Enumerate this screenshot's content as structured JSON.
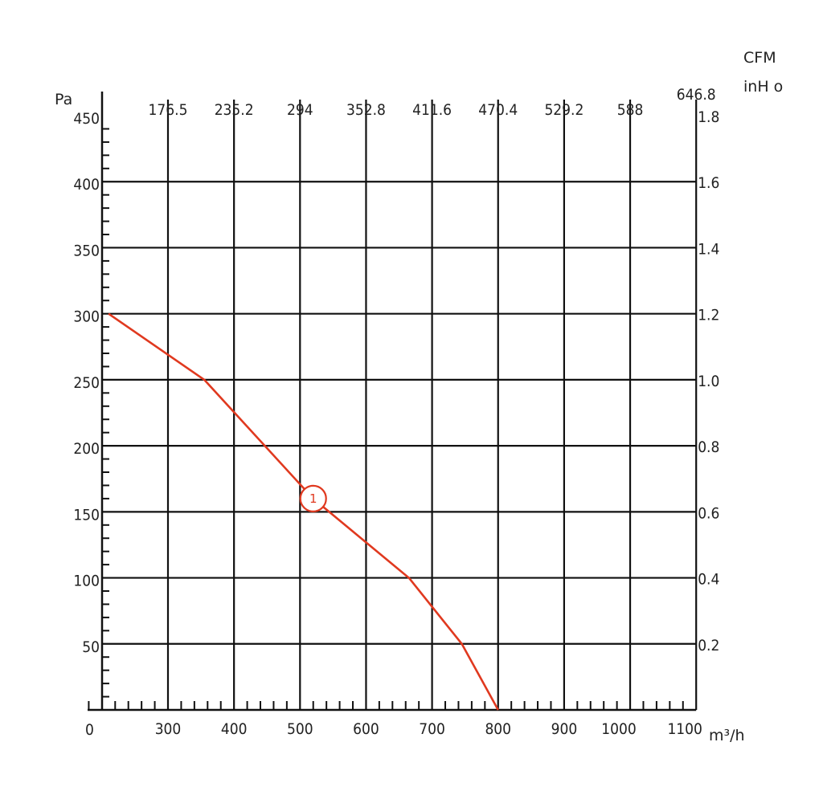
{
  "chart_data": {
    "type": "line",
    "y_unit": "Pa",
    "x_unit": "m³/h",
    "top_unit": "CFM",
    "right_unit": "inH o",
    "xlim": [
      200,
      1100
    ],
    "ylim": [
      0,
      450
    ],
    "x_ticks": [
      {
        "value": 300,
        "label": "300"
      },
      {
        "value": 400,
        "label": "400"
      },
      {
        "value": 500,
        "label": "500"
      },
      {
        "value": 600,
        "label": "600"
      },
      {
        "value": 700,
        "label": "700"
      },
      {
        "value": 800,
        "label": "800"
      },
      {
        "value": 900,
        "label": "900"
      },
      {
        "value": 1000,
        "label": "1000"
      },
      {
        "value": 1100,
        "label": "1100"
      }
    ],
    "x_origin_label": "0",
    "y_ticks": [
      {
        "value": 50,
        "label": "50"
      },
      {
        "value": 100,
        "label": "100"
      },
      {
        "value": 150,
        "label": "150"
      },
      {
        "value": 200,
        "label": "200"
      },
      {
        "value": 250,
        "label": "250"
      },
      {
        "value": 300,
        "label": "300"
      },
      {
        "value": 350,
        "label": "350"
      },
      {
        "value": 400,
        "label": "400"
      },
      {
        "value": 450,
        "label": "450"
      }
    ],
    "top_ticks": [
      {
        "value": 300,
        "label": "176.5"
      },
      {
        "value": 400,
        "label": "235.2"
      },
      {
        "value": 500,
        "label": "294"
      },
      {
        "value": 600,
        "label": "352.8"
      },
      {
        "value": 700,
        "label": "411.6"
      },
      {
        "value": 800,
        "label": "470.4"
      },
      {
        "value": 900,
        "label": "529.2"
      },
      {
        "value": 1000,
        "label": "588"
      },
      {
        "value": 1100,
        "label": "646.8"
      }
    ],
    "right_ticks": [
      {
        "value": 50,
        "label": "0.2"
      },
      {
        "value": 100,
        "label": "0.4"
      },
      {
        "value": 150,
        "label": "0.6"
      },
      {
        "value": 200,
        "label": "0.8"
      },
      {
        "value": 250,
        "label": "1.0"
      },
      {
        "value": 300,
        "label": "1.2"
      },
      {
        "value": 350,
        "label": "1.4"
      },
      {
        "value": 400,
        "label": "1.6"
      },
      {
        "value": 450,
        "label": "1.8"
      }
    ],
    "series": [
      {
        "marker": "1",
        "marker_point": [
          520,
          160
        ],
        "color": "#e0391f",
        "x": [
          210,
          355,
          520,
          665,
          745,
          800
        ],
        "y": [
          300,
          250,
          160,
          100,
          50,
          0
        ]
      }
    ],
    "grid": true
  }
}
